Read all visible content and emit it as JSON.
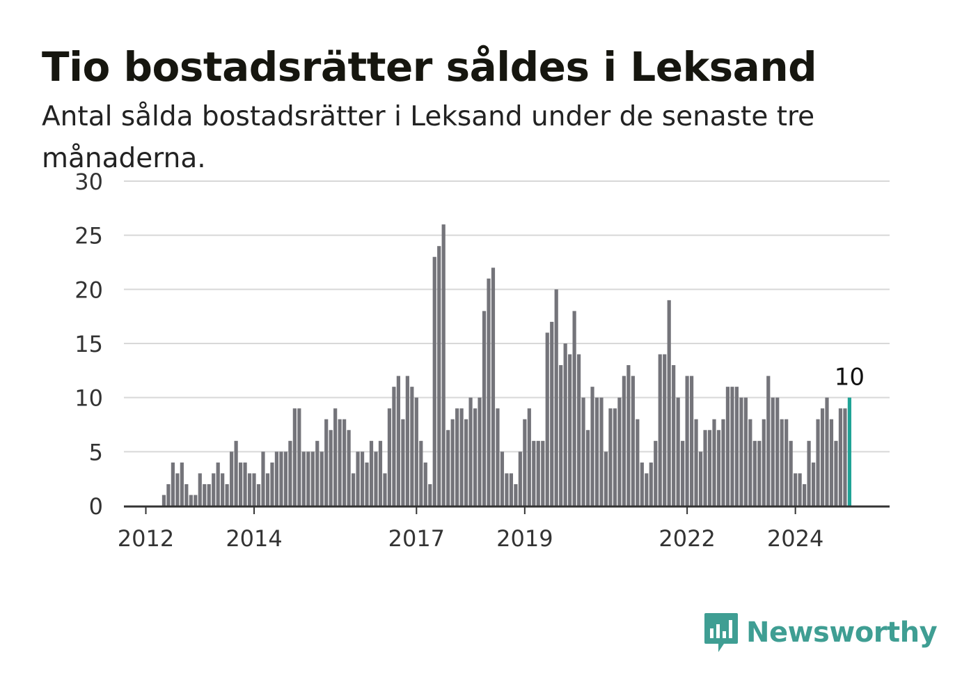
{
  "title": "Tio bostadsrätter såldes i Leksand",
  "subtitle": "Antal sålda bostadsrätter i Leksand under de senaste tre månaderna.",
  "brand": {
    "name": "Newsworthy",
    "color": "#3f9e93",
    "icon": "chat-bubble-bar-chart-icon"
  },
  "colors": {
    "bar": "#74747a",
    "highlight": "#1fa396",
    "grid": "#d8d8d8",
    "axis": "#333333"
  },
  "chart_data": {
    "type": "bar",
    "title": "Tio bostadsrätter såldes i Leksand",
    "subtitle": "Antal sålda bostadsrätter i Leksand under de senaste tre månaderna.",
    "ylim": [
      0,
      30
    ],
    "yticks": [
      0,
      5,
      10,
      15,
      20,
      25,
      30
    ],
    "grid": "horizontal",
    "x_start": "2011-09",
    "frequency": "monthly",
    "xtick_labels": [
      {
        "label": "2012",
        "month": "2012-01"
      },
      {
        "label": "2014",
        "month": "2014-01"
      },
      {
        "label": "2017",
        "month": "2017-01"
      },
      {
        "label": "2019",
        "month": "2019-01"
      },
      {
        "label": "2022",
        "month": "2022-01"
      },
      {
        "label": "2024",
        "month": "2024-01"
      }
    ],
    "values": [
      0,
      0,
      0,
      0,
      0,
      0,
      0,
      0,
      1,
      2,
      4,
      3,
      4,
      2,
      1,
      1,
      3,
      2,
      2,
      3,
      4,
      3,
      2,
      5,
      6,
      4,
      4,
      3,
      3,
      2,
      5,
      3,
      4,
      5,
      5,
      5,
      6,
      9,
      9,
      5,
      5,
      5,
      6,
      5,
      8,
      7,
      9,
      8,
      8,
      7,
      3,
      5,
      5,
      4,
      6,
      5,
      6,
      3,
      9,
      11,
      12,
      8,
      12,
      11,
      10,
      6,
      4,
      2,
      23,
      24,
      26,
      7,
      8,
      9,
      9,
      8,
      10,
      9,
      10,
      18,
      21,
      22,
      9,
      5,
      3,
      3,
      2,
      5,
      8,
      9,
      6,
      6,
      6,
      16,
      17,
      20,
      13,
      15,
      14,
      18,
      14,
      10,
      7,
      11,
      10,
      10,
      5,
      9,
      9,
      10,
      12,
      13,
      12,
      8,
      4,
      3,
      4,
      6,
      14,
      14,
      19,
      13,
      10,
      6,
      12,
      12,
      8,
      5,
      7,
      7,
      8,
      7,
      8,
      11,
      11,
      11,
      10,
      10,
      8,
      6,
      6,
      8,
      12,
      10,
      10,
      8,
      8,
      6,
      3,
      3,
      2,
      6,
      4,
      8,
      9,
      10,
      8,
      6,
      9,
      9,
      10
    ],
    "highlight_last": true,
    "annotation": {
      "text": "10",
      "index": "last"
    }
  }
}
